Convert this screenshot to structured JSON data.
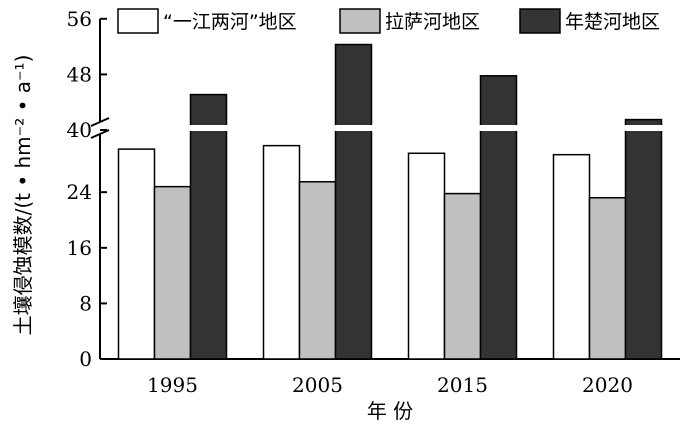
{
  "chart_data": {
    "type": "bar",
    "xlabel": "年 份",
    "ylabel": "土壤侵蚀模数/(t • hm⁻² • a⁻¹)",
    "categories": [
      "1995",
      "2005",
      "2015",
      "2020"
    ],
    "y_ticks": [
      "0",
      "8",
      "16",
      "24",
      "40",
      "48",
      "56"
    ],
    "axis_break": {
      "lower_range": [
        0,
        32
      ],
      "upper_range": [
        40,
        56
      ]
    },
    "legend_position": "top",
    "series": [
      {
        "name": "“一江两河”地区",
        "color": "#ffffff",
        "values": [
          30.2,
          30.7,
          29.6,
          29.4
        ]
      },
      {
        "name": "拉萨河地区",
        "color": "#c0c0c0",
        "values": [
          24.8,
          25.5,
          23.8,
          23.2
        ]
      },
      {
        "name": "年楚河地区",
        "color": "#333333",
        "values": [
          45.1,
          52.3,
          47.8,
          41.5
        ]
      }
    ]
  }
}
